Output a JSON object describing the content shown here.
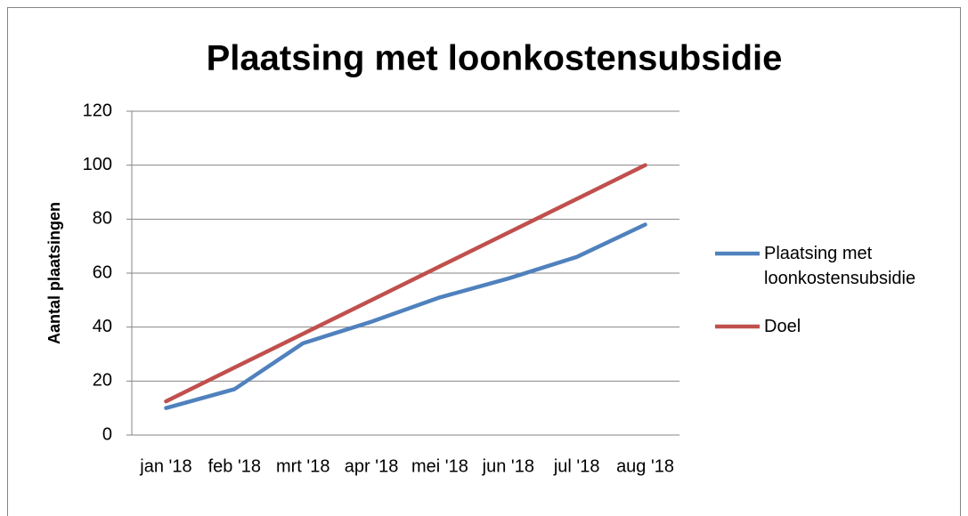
{
  "chart_data": {
    "type": "line",
    "title": "Plaatsing met loonkostensubsidie",
    "y_label": "Aantal plaatsingen",
    "categories": [
      "jan '18",
      "feb '18",
      "mrt '18",
      "apr '18",
      "mei '18",
      "jun '18",
      "jul '18",
      "aug '18"
    ],
    "series": [
      {
        "name": "Plaatsing met loonkostensubsidie",
        "color": "#4f81bd",
        "values": [
          10,
          17,
          34,
          42,
          51,
          58,
          66,
          78
        ]
      },
      {
        "name": "Doel",
        "color": "#c0504d",
        "values": [
          12.5,
          25,
          37.5,
          50,
          62.5,
          75,
          87.5,
          100
        ]
      }
    ],
    "ylim": [
      0,
      120
    ],
    "yticks": [
      0,
      20,
      40,
      60,
      80,
      100,
      120
    ],
    "grid": true,
    "legend": "right"
  }
}
